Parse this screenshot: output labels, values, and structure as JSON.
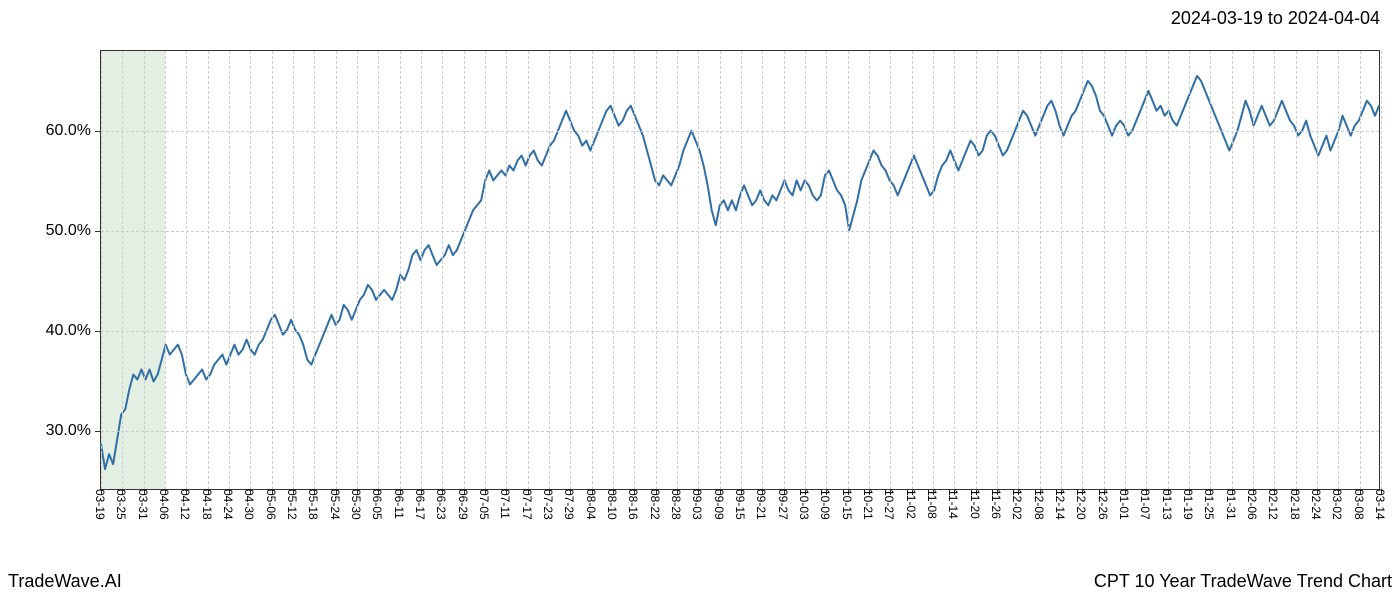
{
  "header": {
    "date_range": "2024-03-19 to 2024-04-04"
  },
  "footer": {
    "brand": "TradeWave.AI",
    "title": "CPT 10 Year TradeWave Trend Chart"
  },
  "chart": {
    "type": "line",
    "background_color": "#ffffff",
    "grid_color": "#cccccc",
    "axis_color": "#333333",
    "line_color": "#2f6fa7",
    "line_width": 2,
    "highlight_band": {
      "color": "rgba(144,190,144,0.25)",
      "x_start_index": 0,
      "x_end_index": 3
    },
    "y_axis": {
      "min": 24,
      "max": 68,
      "ticks": [
        30,
        40,
        50,
        60
      ],
      "tick_labels": [
        "30.0%",
        "40.0%",
        "50.0%",
        "60.0%"
      ],
      "label_fontsize": 16
    },
    "x_axis": {
      "labels": [
        "03-19",
        "03-25",
        "03-31",
        "04-06",
        "04-12",
        "04-18",
        "04-24",
        "04-30",
        "05-06",
        "05-12",
        "05-18",
        "05-24",
        "05-30",
        "06-05",
        "06-11",
        "06-17",
        "06-23",
        "06-29",
        "07-05",
        "07-11",
        "07-17",
        "07-23",
        "07-29",
        "08-04",
        "08-10",
        "08-16",
        "08-22",
        "08-28",
        "09-03",
        "09-09",
        "09-15",
        "09-21",
        "09-27",
        "10-03",
        "10-09",
        "10-15",
        "10-21",
        "10-27",
        "11-02",
        "11-08",
        "11-14",
        "11-20",
        "11-26",
        "12-02",
        "12-08",
        "12-14",
        "12-20",
        "12-26",
        "01-01",
        "01-07",
        "01-13",
        "01-19",
        "01-25",
        "01-31",
        "02-06",
        "02-12",
        "02-18",
        "02-24",
        "03-02",
        "03-08",
        "03-14"
      ],
      "label_fontsize": 12,
      "label_rotation": 90
    },
    "series": [
      {
        "name": "trend",
        "values": [
          28.5,
          26.0,
          27.5,
          26.5,
          29.0,
          31.5,
          32.0,
          34.0,
          35.5,
          35.0,
          36.0,
          35.0,
          36.0,
          34.8,
          35.5,
          37.0,
          38.5,
          37.5,
          38.0,
          38.5,
          37.5,
          35.5,
          34.5,
          35.0,
          35.5,
          36.0,
          35.0,
          35.5,
          36.5,
          37.0,
          37.5,
          36.5,
          37.5,
          38.5,
          37.5,
          38.0,
          39.0,
          38.0,
          37.5,
          38.5,
          39.0,
          40.0,
          41.0,
          41.5,
          40.5,
          39.5,
          40.0,
          41.0,
          40.0,
          39.5,
          38.5,
          37.0,
          36.5,
          37.5,
          38.5,
          39.5,
          40.5,
          41.5,
          40.5,
          41.0,
          42.5,
          42.0,
          41.0,
          42.0,
          43.0,
          43.5,
          44.5,
          44.0,
          43.0,
          43.5,
          44.0,
          43.5,
          43.0,
          44.0,
          45.5,
          45.0,
          46.0,
          47.5,
          48.0,
          47.0,
          48.0,
          48.5,
          47.5,
          46.5,
          47.0,
          47.5,
          48.5,
          47.5,
          48.0,
          49.0,
          50.0,
          51.0,
          52.0,
          52.5,
          53.0,
          55.0,
          56.0,
          55.0,
          55.5,
          56.0,
          55.5,
          56.5,
          56.0,
          57.0,
          57.5,
          56.5,
          57.5,
          58.0,
          57.0,
          56.5,
          57.5,
          58.5,
          59.0,
          60.0,
          61.0,
          62.0,
          61.0,
          60.0,
          59.5,
          58.5,
          59.0,
          58.0,
          59.0,
          60.0,
          61.0,
          62.0,
          62.5,
          61.5,
          60.5,
          61.0,
          62.0,
          62.5,
          61.5,
          60.5,
          59.5,
          58.0,
          56.5,
          55.0,
          54.5,
          55.5,
          55.0,
          54.5,
          55.5,
          56.5,
          58.0,
          59.0,
          60.0,
          59.0,
          58.0,
          56.5,
          54.5,
          52.0,
          50.5,
          52.5,
          53.0,
          52.0,
          53.0,
          52.0,
          53.5,
          54.5,
          53.5,
          52.5,
          53.0,
          54.0,
          53.0,
          52.5,
          53.5,
          53.0,
          54.0,
          55.0,
          54.0,
          53.5,
          55.0,
          54.0,
          55.0,
          54.5,
          53.5,
          53.0,
          53.5,
          55.5,
          56.0,
          55.0,
          54.0,
          53.5,
          52.5,
          50.0,
          51.5,
          53.0,
          55.0,
          56.0,
          57.0,
          58.0,
          57.5,
          56.5,
          56.0,
          55.0,
          54.5,
          53.5,
          54.5,
          55.5,
          56.5,
          57.5,
          56.5,
          55.5,
          54.5,
          53.5,
          54.0,
          55.5,
          56.5,
          57.0,
          58.0,
          57.0,
          56.0,
          57.0,
          58.0,
          59.0,
          58.5,
          57.5,
          58.0,
          59.5,
          60.0,
          59.5,
          58.5,
          57.5,
          58.0,
          59.0,
          60.0,
          61.0,
          62.0,
          61.5,
          60.5,
          59.5,
          60.5,
          61.5,
          62.5,
          63.0,
          62.0,
          60.5,
          59.5,
          60.5,
          61.5,
          62.0,
          63.0,
          64.0,
          65.0,
          64.5,
          63.5,
          62.0,
          61.5,
          60.5,
          59.5,
          60.5,
          61.0,
          60.5,
          59.5,
          60.0,
          61.0,
          62.0,
          63.0,
          64.0,
          63.0,
          62.0,
          62.5,
          61.5,
          62.0,
          61.0,
          60.5,
          61.5,
          62.5,
          63.5,
          64.5,
          65.5,
          65.0,
          64.0,
          63.0,
          62.0,
          61.0,
          60.0,
          59.0,
          58.0,
          59.0,
          60.0,
          61.5,
          63.0,
          62.0,
          60.5,
          61.5,
          62.5,
          61.5,
          60.5,
          61.0,
          62.0,
          63.0,
          62.0,
          61.0,
          60.5,
          59.5,
          60.0,
          61.0,
          59.5,
          58.5,
          57.5,
          58.5,
          59.5,
          58.0,
          59.0,
          60.0,
          61.5,
          60.5,
          59.5,
          60.5,
          61.0,
          62.0,
          63.0,
          62.5,
          61.5,
          62.5
        ]
      }
    ]
  }
}
